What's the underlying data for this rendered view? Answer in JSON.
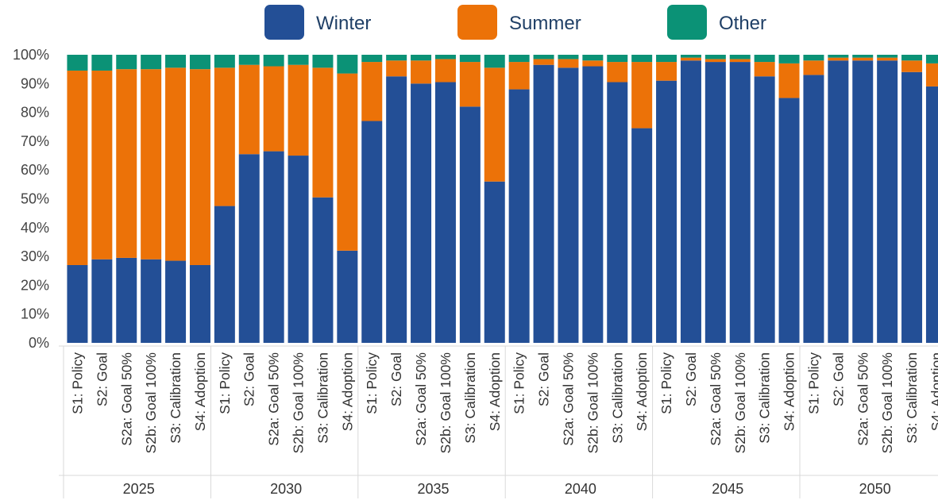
{
  "chart_data": {
    "type": "bar",
    "stacked": true,
    "title": "",
    "xlabel": "",
    "ylabel": "",
    "ylim": [
      0,
      100
    ],
    "y_ticks": [
      "0%",
      "10%",
      "20%",
      "30%",
      "40%",
      "50%",
      "60%",
      "70%",
      "80%",
      "90%",
      "100%"
    ],
    "grid": false,
    "legend_position": "top",
    "groups": [
      "2025",
      "2030",
      "2035",
      "2040",
      "2045",
      "2050"
    ],
    "categories": [
      "S1: Policy",
      "S2: Goal",
      "S2a: Goal 50%",
      "S2b: Goal 100%",
      "S3: Calibration",
      "S4: Adoption"
    ],
    "series": [
      {
        "name": "Winter",
        "color": "#234f96",
        "values": [
          [
            27,
            29,
            29.5,
            29,
            28.5,
            27
          ],
          [
            47.5,
            65.5,
            66.5,
            65,
            50.5,
            32
          ],
          [
            77,
            92.5,
            90,
            90.5,
            82,
            56
          ],
          [
            88,
            96.5,
            95.5,
            96,
            90.5,
            74.5
          ],
          [
            91,
            98,
            97.5,
            97.5,
            92.5,
            85
          ],
          [
            93,
            98,
            98,
            98,
            94,
            89
          ]
        ]
      },
      {
        "name": "Summer",
        "color": "#ec7208",
        "values": [
          [
            67.5,
            65.5,
            65.5,
            66,
            67,
            68
          ],
          [
            48,
            31,
            29.5,
            31.5,
            45,
            61.5
          ],
          [
            20.5,
            5.5,
            8,
            8,
            15.5,
            39.5
          ],
          [
            9.5,
            2,
            3,
            2,
            7,
            23
          ],
          [
            6.5,
            1,
            1,
            1,
            5,
            12
          ],
          [
            5,
            1,
            1,
            1,
            4,
            8
          ]
        ]
      },
      {
        "name": "Other",
        "color": "#0b9276",
        "values": [
          [
            5.5,
            5.5,
            5,
            5,
            4.5,
            5
          ],
          [
            4.5,
            3.5,
            4,
            3.5,
            4.5,
            6.5
          ],
          [
            2.5,
            2,
            2,
            1.5,
            2.5,
            4.5
          ],
          [
            2.5,
            1.5,
            1.5,
            2,
            2.5,
            2.5
          ],
          [
            2.5,
            1,
            1.5,
            1.5,
            2.5,
            3
          ],
          [
            2,
            1,
            1,
            1,
            2,
            3
          ]
        ]
      }
    ]
  }
}
